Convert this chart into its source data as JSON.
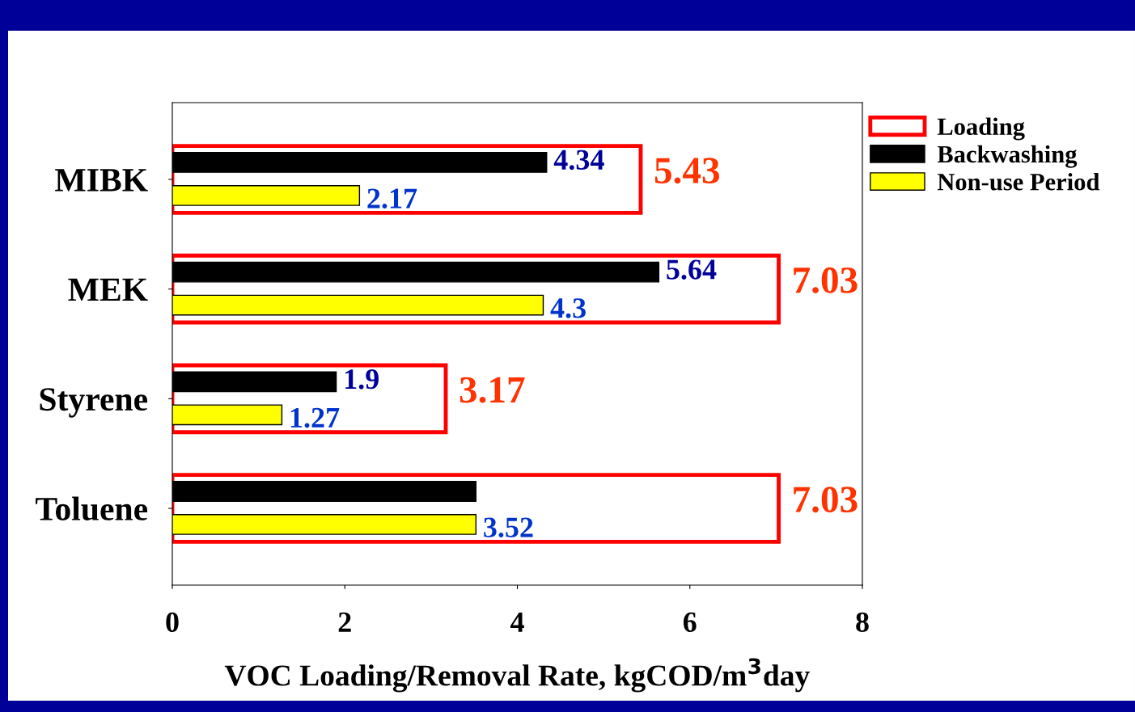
{
  "chart_data": {
    "type": "bar",
    "orientation": "horizontal",
    "xlabel": "VOC Loading/Removal Rate, kgCOD/m$^{3}$day",
    "categories": [
      "MIBK",
      "MEK",
      "Styrene",
      "Toluene"
    ],
    "series": [
      {
        "name": "Loading",
        "color": "#ff0000",
        "values": [
          5.43,
          7.03,
          3.17,
          7.03
        ],
        "value_labels": [
          "5.43",
          "7.03",
          "3.17",
          "7.03"
        ]
      },
      {
        "name": "Backwashing",
        "color": "#000000",
        "values": [
          4.34,
          5.64,
          1.9,
          3.52
        ],
        "value_labels": [
          "4.34",
          "5.64",
          "1.9",
          null
        ]
      },
      {
        "name": "Non-use Period",
        "color": "#ffff00",
        "values": [
          2.17,
          4.3,
          1.27,
          3.52
        ],
        "value_labels": [
          "2.17",
          "4.3",
          "1.27",
          "3.52"
        ]
      }
    ],
    "xlim": [
      0,
      8
    ],
    "xticks": [
      0,
      2,
      4,
      6,
      8
    ],
    "grid": false,
    "legend": "right"
  }
}
